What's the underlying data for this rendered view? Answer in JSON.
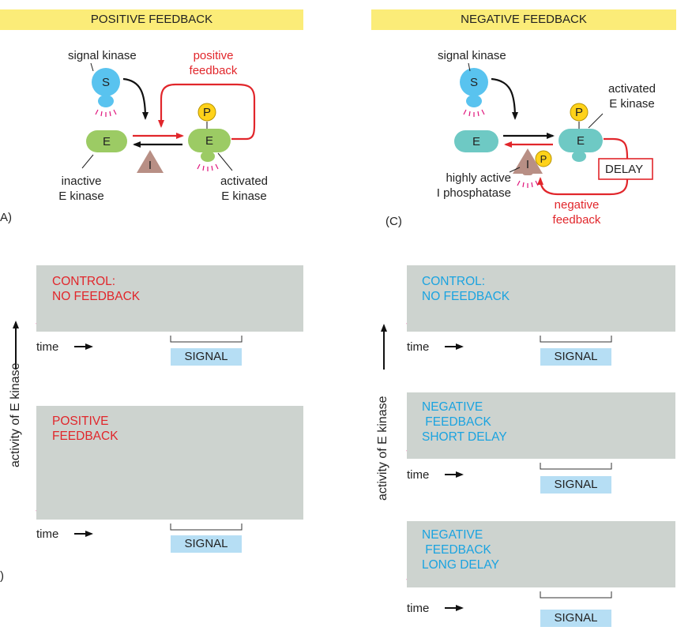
{
  "banners": {
    "positive": "POSITIVE FEEDBACK",
    "negative": "NEGATIVE FEEDBACK"
  },
  "nodes": {
    "s": "S",
    "e": "E",
    "i": "I",
    "p": "P"
  },
  "panel_a": {
    "letter": "A)",
    "signal_kinase": "signal kinase",
    "feedback_line1": "positive",
    "feedback_line2": "feedback",
    "inactive_line1": "inactive",
    "inactive_line2": "E kinase",
    "activated_line1": "activated",
    "activated_line2": "E kinase"
  },
  "panel_c": {
    "letter": "(C)",
    "signal_kinase": "signal kinase",
    "activated_line1": "activated",
    "activated_line2": "E kinase",
    "delay": "DELAY",
    "phosphatase_line1": "highly active",
    "phosphatase_line2": "I phosphatase",
    "feedback_line1": "negative",
    "feedback_line2": "feedback"
  },
  "plots": {
    "y_axis": "activity of E kinase",
    "time": "time",
    "signal": "SIGNAL",
    "left_control": "CONTROL:\nNO FEEDBACK",
    "left_positive": "POSITIVE\nFEEDBACK",
    "right_control": "CONTROL:\nNO FEEDBACK",
    "right_short": "NEGATIVE\n FEEDBACK\nSHORT DELAY",
    "right_long": "NEGATIVE\n FEEDBACK\nLONG DELAY",
    "bottom_left_letter": ")"
  },
  "colors": {
    "curve": "#e0157c",
    "feedback_red": "#e1262b",
    "cyan_text": "#1aa3e0",
    "plot_bg": "#cdd3cf",
    "signal_bg": "#b6def4",
    "banner_bg": "#fbec78",
    "s_blue": "#59c3ef",
    "e_green": "#9ccb64",
    "e_teal": "#6ec9c4",
    "i_brown": "#b88f85",
    "p_yellow": "#ffd21a"
  }
}
